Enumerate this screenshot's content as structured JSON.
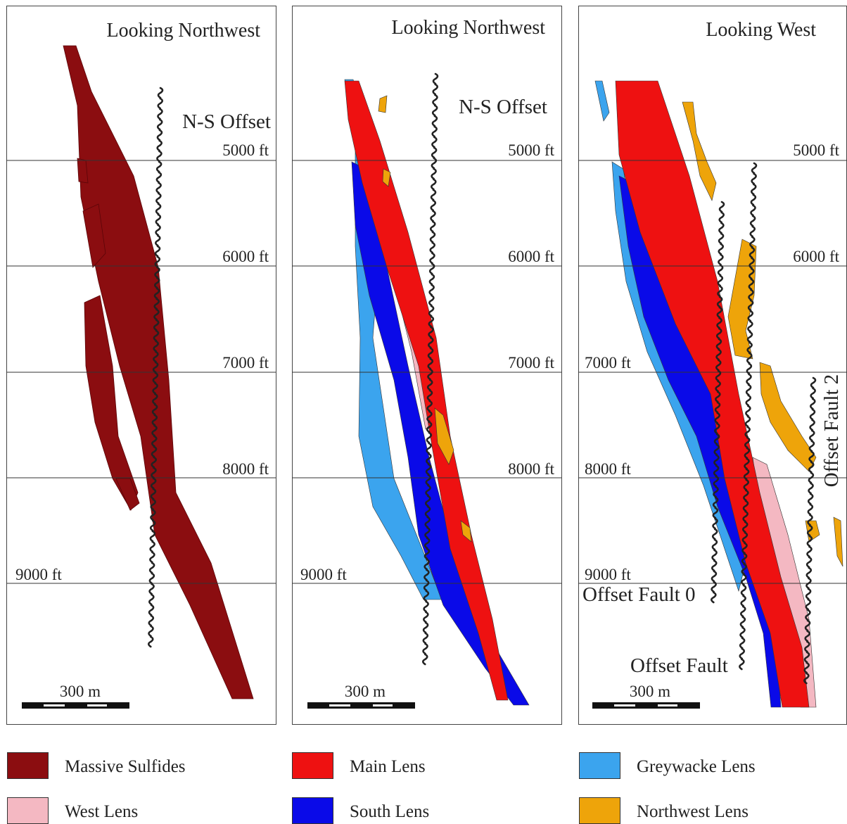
{
  "panels": [
    {
      "title": "Looking Northwest",
      "depths": [
        "5000 ft",
        "6000 ft",
        "7000 ft",
        "8000 ft",
        "9000 ft"
      ],
      "annotations": [
        "N-S Offset"
      ],
      "scale": "300 m"
    },
    {
      "title": "Looking Northwest",
      "depths": [
        "5000 ft",
        "6000 ft",
        "7000 ft",
        "8000 ft",
        "9000 ft"
      ],
      "annotations": [
        "N-S Offset"
      ],
      "scale": "300 m"
    },
    {
      "title": "Looking West",
      "depths": [
        "5000 ft",
        "6000 ft",
        "7000 ft",
        "8000 ft",
        "9000 ft"
      ],
      "annotations": [
        "Offset Fault 0",
        "Offset Fault",
        "Offset Fault 2"
      ],
      "scale": "300 m"
    }
  ],
  "legend": [
    {
      "label": "Massive Sulfides",
      "color": "#8b0d10"
    },
    {
      "label": "Main Lens",
      "color": "#ee1111"
    },
    {
      "label": "Greywacke Lens",
      "color": "#3ba4ee"
    },
    {
      "label": "West Lens",
      "color": "#f4b8c2"
    },
    {
      "label": "South Lens",
      "color": "#0a0ae8"
    },
    {
      "label": "Northwest Lens",
      "color": "#eea40a"
    }
  ]
}
